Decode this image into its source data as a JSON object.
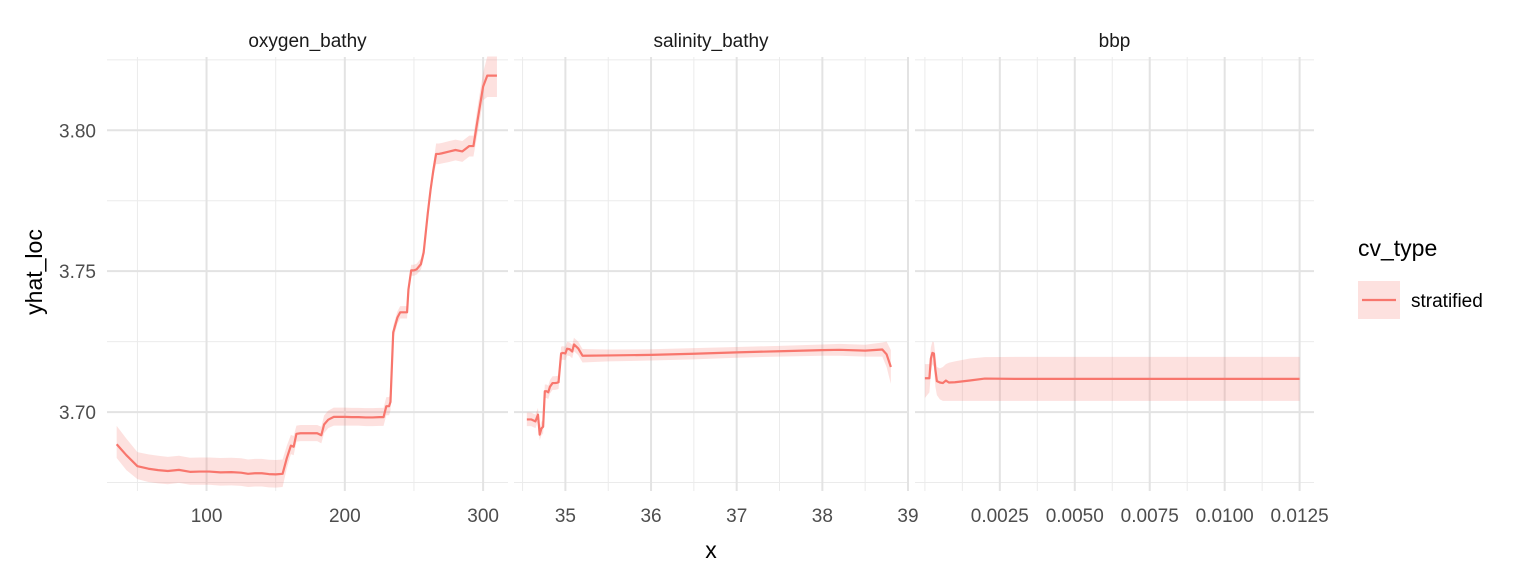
{
  "chart_data": {
    "type": "line",
    "ylabel": "yhat_loc",
    "xlabel": "x",
    "ylim": [
      3.672,
      3.826
    ],
    "y_ticks": [
      3.7,
      3.75,
      3.8
    ],
    "y_tick_labels": [
      "3.70",
      "3.75",
      "3.80"
    ],
    "y_minor_ticks": [
      3.675,
      3.725,
      3.775,
      3.825
    ],
    "grid": true,
    "legend": {
      "title": "cv_type",
      "placement": "right",
      "entries": [
        {
          "label": "stratified",
          "line_color": "#F8766D",
          "band_color": "#F8766D"
        }
      ]
    },
    "panels": [
      {
        "name": "oxygen_bathy",
        "xlim": [
          28,
          318
        ],
        "x_ticks": [
          100,
          200,
          300
        ],
        "x_tick_labels": [
          "100",
          "200",
          "300"
        ],
        "x_minor_ticks": [
          50,
          150,
          250
        ],
        "series": [
          {
            "name": "stratified",
            "x": [
              35,
              42,
              50,
              58,
              65,
              72,
              80,
              88,
              95,
              102,
              110,
              118,
              125,
              130,
              135,
              140,
              145,
              150,
              155,
              158,
              161,
              163,
              165,
              168,
              172,
              176,
              180,
              183,
              185,
              188,
              192,
              196,
              200,
              205,
              210,
              215,
              220,
              225,
              228,
              230,
              232,
              233,
              235,
              238,
              240,
              243,
              245,
              246,
              248,
              250,
              252,
              255,
              257,
              260,
              262,
              264,
              266,
              268,
              270,
              275,
              280,
              285,
              290,
              293,
              296,
              300,
              303,
              306,
              310
            ],
            "y": [
              3.6886,
              3.6847,
              3.6808,
              3.6799,
              3.6794,
              3.6791,
              3.6795,
              3.6788,
              3.6789,
              3.6789,
              3.6786,
              3.6787,
              3.6785,
              3.6781,
              3.6783,
              3.6783,
              3.678,
              3.6779,
              3.6781,
              3.6836,
              3.6881,
              3.6877,
              3.6923,
              3.6925,
              3.6925,
              3.6925,
              3.6925,
              3.6918,
              3.6956,
              3.6973,
              3.6983,
              3.6983,
              3.6983,
              3.6982,
              3.6982,
              3.6981,
              3.6981,
              3.6982,
              3.6982,
              3.7021,
              3.7021,
              3.7036,
              3.7283,
              3.7335,
              3.7354,
              3.7354,
              3.7354,
              3.7435,
              3.7503,
              3.7503,
              3.7507,
              3.7525,
              3.7566,
              3.7706,
              3.7789,
              3.7858,
              3.7916,
              3.7916,
              3.7918,
              3.7924,
              3.793,
              3.7925,
              3.7944,
              3.7944,
              3.8036,
              3.8155,
              3.8194,
              3.8194,
              3.8194
            ],
            "lower": [
              3.6837,
              3.6794,
              3.6762,
              3.6752,
              3.6747,
              3.6744,
              3.6749,
              3.6742,
              3.6742,
              3.6742,
              3.6739,
              3.674,
              3.6738,
              3.6734,
              3.6736,
              3.6736,
              3.6733,
              3.6732,
              3.6734,
              3.68,
              3.6851,
              3.6847,
              3.6895,
              3.6897,
              3.6897,
              3.6897,
              3.6897,
              3.6889,
              3.6925,
              3.6943,
              3.6952,
              3.6952,
              3.6952,
              3.6952,
              3.6952,
              3.695,
              3.695,
              3.6951,
              3.6951,
              3.6989,
              3.6989,
              3.7005,
              3.7259,
              3.7313,
              3.7332,
              3.7332,
              3.7332,
              3.7414,
              3.7484,
              3.7484,
              3.7488,
              3.7505,
              3.7544,
              3.7683,
              3.7766,
              3.7835,
              3.788,
              3.788,
              3.7882,
              3.7887,
              3.7893,
              3.7888,
              3.7907,
              3.7907,
              3.7989,
              3.8106,
              3.8118,
              3.8118,
              3.8118
            ],
            "upper": [
              3.6951,
              3.6906,
              3.6858,
              3.685,
              3.6845,
              3.6841,
              3.6845,
              3.6838,
              3.6839,
              3.6839,
              3.6837,
              3.6838,
              3.6836,
              3.6832,
              3.6834,
              3.6834,
              3.6831,
              3.683,
              3.6832,
              3.688,
              3.6919,
              3.6915,
              3.6952,
              3.6954,
              3.6954,
              3.6954,
              3.6954,
              3.6948,
              3.6988,
              3.7005,
              3.7016,
              3.7016,
              3.7016,
              3.7015,
              3.7015,
              3.7014,
              3.7014,
              3.7015,
              3.7015,
              3.7053,
              3.7053,
              3.7068,
              3.7306,
              3.7357,
              3.7376,
              3.7376,
              3.7376,
              3.7456,
              3.7523,
              3.7523,
              3.7527,
              3.7545,
              3.7588,
              3.773,
              3.7812,
              3.7881,
              3.7953,
              3.7953,
              3.7955,
              3.7961,
              3.7967,
              3.7962,
              3.7981,
              3.7981,
              3.8083,
              3.8204,
              3.8262,
              3.8262,
              3.8262
            ]
          }
        ]
      },
      {
        "name": "salinity_bathy",
        "xlim": [
          34.4,
          39.0
        ],
        "x_ticks": [
          35,
          36,
          37,
          38,
          39
        ],
        "x_tick_labels": [
          "35",
          "36",
          "37",
          "38",
          "39"
        ],
        "x_minor_ticks": [
          34.5,
          35.5,
          36.5,
          37.5,
          38.5
        ],
        "series": [
          {
            "name": "stratified",
            "x": [
              34.55,
              34.6,
              34.65,
              34.68,
              34.7,
              34.72,
              34.74,
              34.76,
              34.78,
              34.8,
              34.82,
              34.85,
              34.88,
              34.9,
              34.92,
              34.95,
              34.97,
              35.0,
              35.02,
              35.05,
              35.08,
              35.1,
              35.15,
              35.2,
              35.5,
              36.0,
              36.5,
              37.0,
              37.5,
              38.0,
              38.2,
              38.5,
              38.7,
              38.75,
              38.8
            ],
            "y": [
              3.6974,
              3.6974,
              3.6967,
              3.6991,
              3.692,
              3.6942,
              3.6948,
              3.7074,
              3.7074,
              3.707,
              3.709,
              3.7103,
              3.7103,
              3.7104,
              3.7106,
              3.7208,
              3.721,
              3.7208,
              3.7225,
              3.7223,
              3.7215,
              3.724,
              3.7226,
              3.72,
              3.7201,
              3.7203,
              3.7207,
              3.7212,
              3.7216,
              3.722,
              3.7221,
              3.7218,
              3.7222,
              3.7205,
              3.716
            ],
            "lower": [
              3.695,
              3.695,
              3.6943,
              3.6967,
              3.69,
              3.6918,
              3.6924,
              3.705,
              3.705,
              3.7046,
              3.7066,
              3.7079,
              3.7079,
              3.708,
              3.7082,
              3.7184,
              3.7186,
              3.7184,
              3.7201,
              3.7199,
              3.7191,
              3.7216,
              3.7202,
              3.7176,
              3.718,
              3.7183,
              3.7187,
              3.7193,
              3.7197,
              3.72,
              3.72,
              3.7197,
              3.7197,
              3.716,
              3.71
            ],
            "upper": [
              3.6998,
              3.6998,
              3.6991,
              3.7015,
              3.6945,
              3.6966,
              3.6972,
              3.7098,
              3.7098,
              3.7094,
              3.7114,
              3.7127,
              3.7127,
              3.7128,
              3.713,
              3.7232,
              3.7234,
              3.7232,
              3.7249,
              3.7247,
              3.7239,
              3.7264,
              3.725,
              3.7224,
              3.7222,
              3.7223,
              3.7227,
              3.7231,
              3.7235,
              3.724,
              3.7242,
              3.7239,
              3.7247,
              3.725,
              3.722
            ]
          }
        ]
      },
      {
        "name": "bbp",
        "xlim": [
          -0.00033,
          0.01298
        ],
        "x_ticks": [
          0.0025,
          0.005,
          0.0075,
          0.01,
          0.0125
        ],
        "x_tick_labels": [
          "0.0025",
          "0.0050",
          "0.0075",
          "0.0100",
          "0.0125"
        ],
        "x_minor_ticks": [
          0.0,
          0.00125,
          0.00375,
          0.00625,
          0.00875,
          0.01125
        ],
        "series": [
          {
            "name": "stratified",
            "x": [
              0.0,
              0.00015,
              0.0002,
              0.00025,
              0.0003,
              0.00035,
              0.0004,
              0.0005,
              0.0006,
              0.0007,
              0.0008,
              0.001,
              0.0015,
              0.002,
              0.003,
              0.005,
              0.0075,
              0.01,
              0.0125
            ],
            "y": [
              3.712,
              3.712,
              3.719,
              3.721,
              3.7208,
              3.715,
              3.711,
              3.7105,
              3.7103,
              3.7112,
              3.7105,
              3.7106,
              3.7112,
              3.7119,
              3.7118,
              3.7118,
              3.7118,
              3.7118,
              3.7118
            ],
            "lower": [
              3.705,
              3.707,
              3.714,
              3.717,
              3.716,
              3.709,
              3.706,
              3.7045,
              3.704,
              3.704,
              3.704,
              3.704,
              3.704,
              3.704,
              3.704,
              3.704,
              3.704,
              3.704,
              3.704
            ],
            "upper": [
              3.717,
              3.717,
              3.723,
              3.725,
              3.7248,
              3.72,
              3.716,
              3.7155,
              3.716,
              3.717,
              3.7175,
              3.718,
              3.719,
              3.7195,
              3.7196,
              3.7196,
              3.7196,
              3.7196,
              3.7196
            ]
          }
        ]
      }
    ]
  }
}
